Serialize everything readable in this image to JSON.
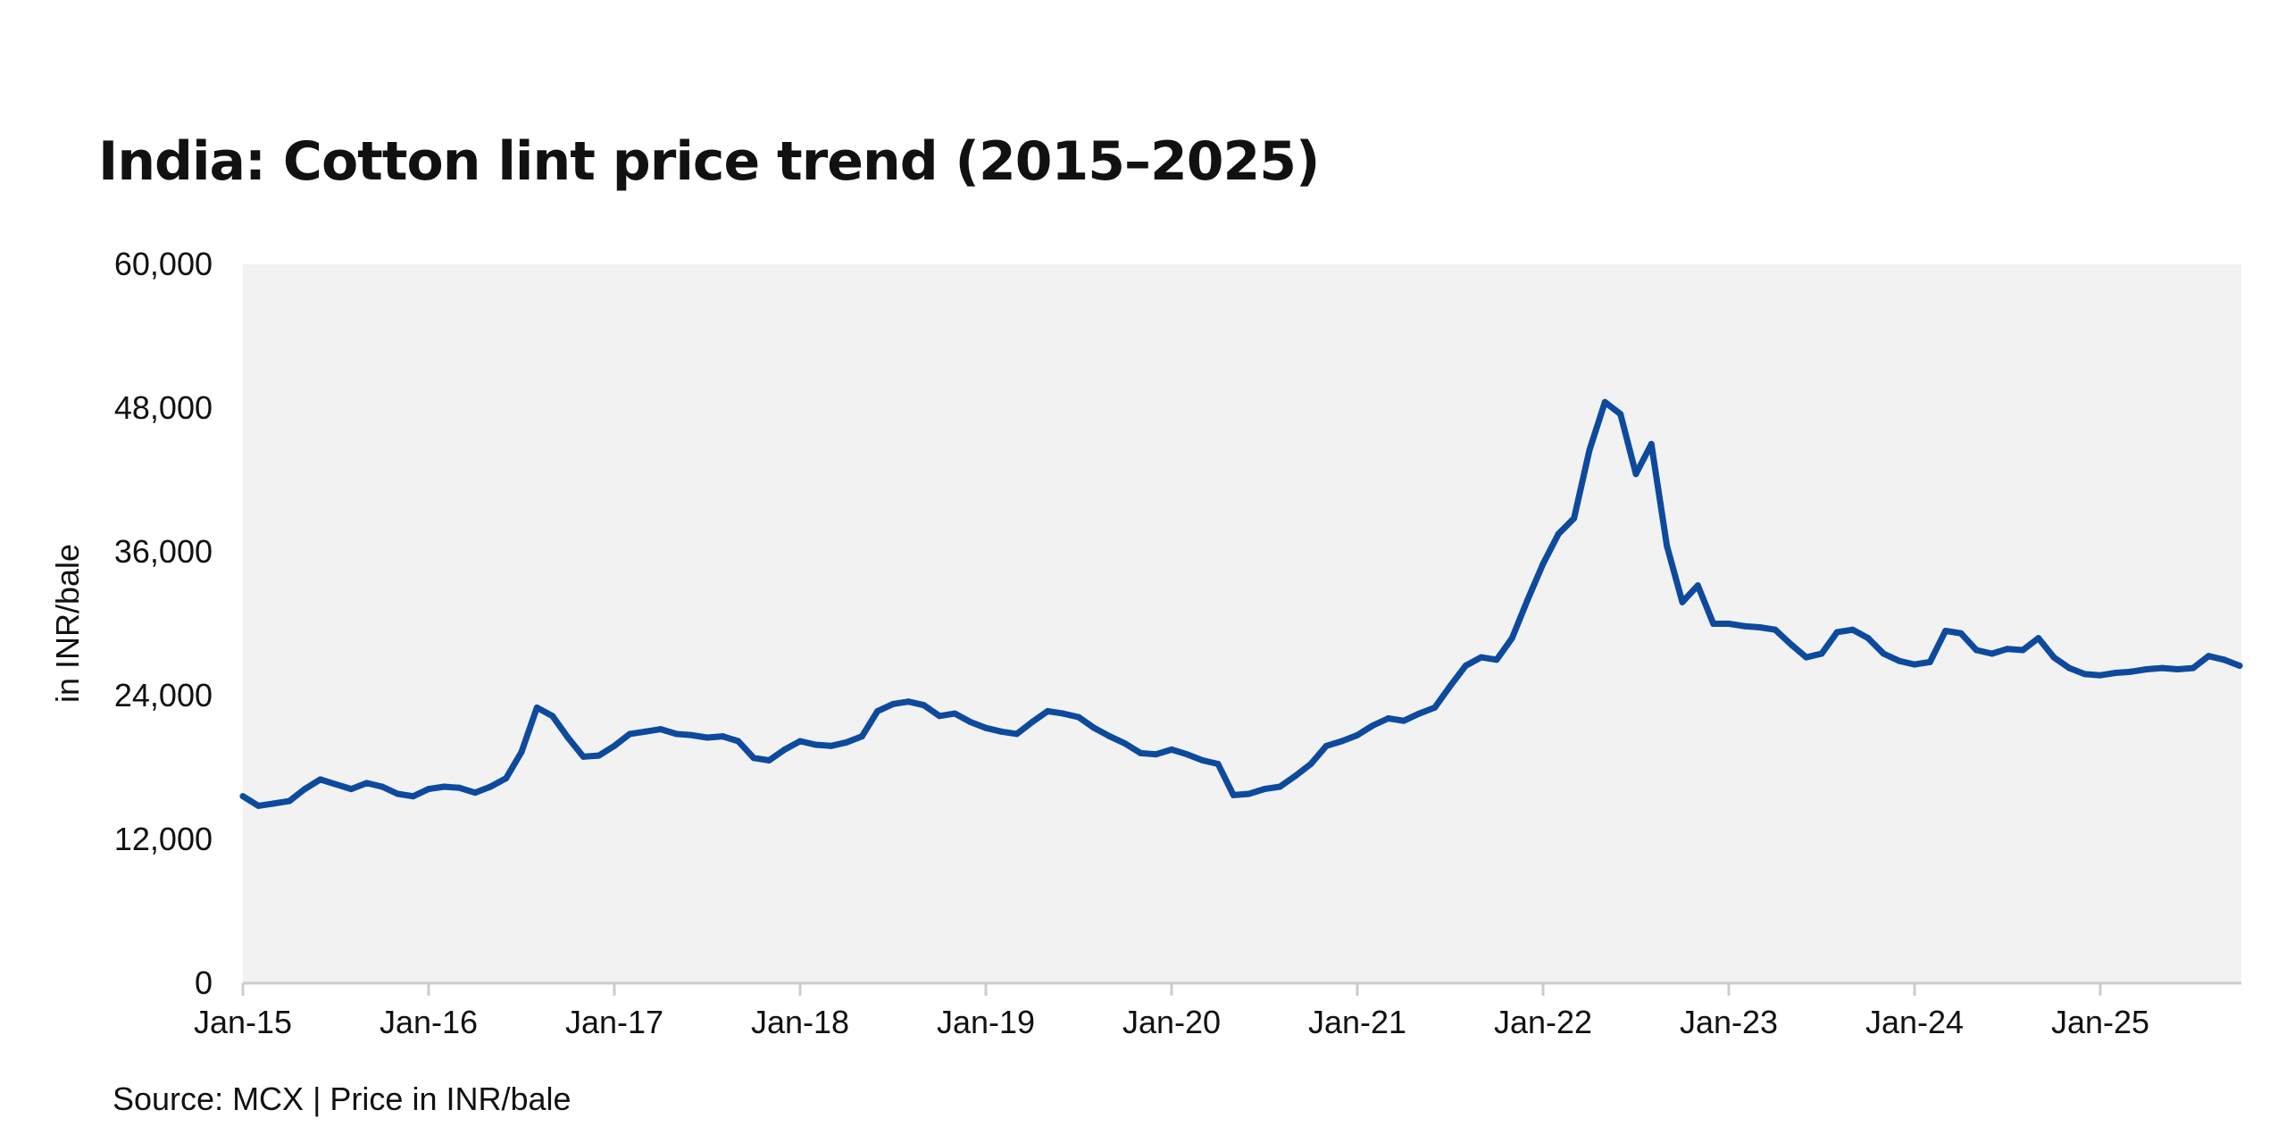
{
  "chart_data": {
    "type": "line",
    "title": "India: Cotton lint price trend (2015–2025)",
    "ylabel": "in INR/bale",
    "xlabel": "",
    "source": "Source: MCX | Price in INR/bale",
    "x_tick_labels": [
      "Jan-15",
      "Jan-16",
      "Jan-17",
      "Jan-18",
      "Jan-19",
      "Jan-20",
      "Jan-21",
      "Jan-22",
      "Jan-23",
      "Jan-24",
      "Jan-25"
    ],
    "y_tick_labels": [
      "0",
      "12,000",
      "24,000",
      "36,000",
      "48,000",
      "60,000"
    ],
    "ylim": [
      0,
      60000
    ],
    "xlim": [
      "2015-01",
      "2025-10"
    ],
    "grid": false,
    "legend": "none",
    "colors": {
      "line": "#0D4A9E",
      "plot_background": "#F2F2F2",
      "axis": "#CCCCCC"
    },
    "series": [
      {
        "x": [
          "2015-01",
          "2015-02",
          "2015-03",
          "2015-04",
          "2015-05",
          "2015-06",
          "2015-07",
          "2015-08",
          "2015-09",
          "2015-10",
          "2015-11",
          "2015-12",
          "2016-01",
          "2016-02",
          "2016-03",
          "2016-04",
          "2016-05",
          "2016-06",
          "2016-07",
          "2016-08",
          "2016-09",
          "2016-10",
          "2016-11",
          "2016-12",
          "2017-01",
          "2017-02",
          "2017-03",
          "2017-04",
          "2017-05",
          "2017-06",
          "2017-07",
          "2017-08",
          "2017-09",
          "2017-10",
          "2017-11",
          "2017-12",
          "2018-01",
          "2018-02",
          "2018-03",
          "2018-04",
          "2018-05",
          "2018-06",
          "2018-07",
          "2018-08",
          "2018-09",
          "2018-10",
          "2018-11",
          "2018-12",
          "2019-01",
          "2019-02",
          "2019-03",
          "2019-04",
          "2019-05",
          "2019-06",
          "2019-07",
          "2019-08",
          "2019-09",
          "2019-10",
          "2019-11",
          "2019-12",
          "2020-01",
          "2020-02",
          "2020-03",
          "2020-04",
          "2020-05",
          "2020-06",
          "2020-07",
          "2020-08",
          "2020-09",
          "2020-10",
          "2020-11",
          "2020-12",
          "2021-01",
          "2021-02",
          "2021-03",
          "2021-04",
          "2021-05",
          "2021-06",
          "2021-07",
          "2021-08",
          "2021-09",
          "2021-10",
          "2021-11",
          "2021-12",
          "2022-01",
          "2022-02",
          "2022-03",
          "2022-04",
          "2022-05",
          "2022-06",
          "2022-07",
          "2022-08",
          "2022-09",
          "2022-10",
          "2022-11",
          "2022-12",
          "2023-01",
          "2023-02",
          "2023-03",
          "2023-04",
          "2023-05",
          "2023-06",
          "2023-07",
          "2023-08",
          "2023-09",
          "2023-10",
          "2023-11",
          "2023-12",
          "2024-01",
          "2024-02",
          "2024-03",
          "2024-04",
          "2024-05",
          "2024-06",
          "2024-07",
          "2024-08",
          "2024-09",
          "2024-10",
          "2024-11",
          "2024-12",
          "2025-01",
          "2025-02",
          "2025-03",
          "2025-04",
          "2025-05",
          "2025-06",
          "2025-07",
          "2025-08",
          "2025-09",
          "2025-10"
        ],
        "values": [
          15600,
          14800,
          15000,
          15200,
          16200,
          17000,
          16600,
          16200,
          16700,
          16400,
          15800,
          15600,
          16200,
          16400,
          16300,
          15900,
          16400,
          17100,
          19300,
          23000,
          22300,
          20500,
          18900,
          19000,
          19800,
          20800,
          21000,
          21200,
          20800,
          20700,
          20500,
          20600,
          20200,
          18800,
          18600,
          19500,
          20200,
          19900,
          19800,
          20100,
          20600,
          22700,
          23300,
          23500,
          23200,
          22300,
          22500,
          21800,
          21300,
          21000,
          20800,
          21800,
          22700,
          22500,
          22200,
          21300,
          20600,
          20000,
          19200,
          19100,
          19500,
          19100,
          18600,
          18300,
          15700,
          15800,
          16200,
          16400,
          17300,
          18300,
          19800,
          20200,
          20700,
          21500,
          22100,
          21900,
          22500,
          23000,
          24800,
          26500,
          27200,
          27000,
          28800,
          32000,
          35000,
          37500,
          38800,
          44500,
          48500,
          47500,
          42500,
          45000,
          36500,
          31800,
          33200,
          30000,
          30000,
          29800,
          29700,
          29500,
          28300,
          27200,
          27500,
          29300,
          29500,
          28800,
          27500,
          26900,
          26600,
          26800,
          29400,
          29200,
          27800,
          27500,
          27900,
          27800,
          28800,
          27200,
          26300,
          25800,
          25700,
          25900,
          26000,
          26200,
          26300,
          26200,
          26300,
          27300,
          27000,
          26500
        ]
      }
    ]
  }
}
